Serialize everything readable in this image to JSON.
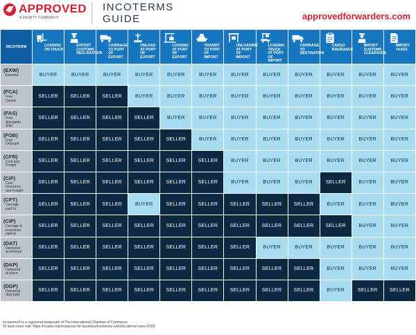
{
  "brand": {
    "name": "APPROVED",
    "tagline": "A DEWITT COMPANY®",
    "red": "#d3202f"
  },
  "title": {
    "line1": "INCOTERMS",
    "line2": "GUIDE"
  },
  "website": "approvedforwarders.com",
  "colors": {
    "header_blue": "#1676bf",
    "seller_navy": "#0c2944",
    "buyer_light": "#a8dcf1",
    "row_label_gray": "#bcc3ca"
  },
  "corner_label": "INCOTERM",
  "columns": [
    {
      "label": "LOADING\nON TRUCK",
      "icon": "forklift-icon"
    },
    {
      "label": "EXPORT\nCUSTOMS\nDECLARATION",
      "icon": "customs-officer-icon"
    },
    {
      "label": "CARRIAGE\nTO PORT\nOF EXPORT",
      "icon": "truck-icon"
    },
    {
      "label": "UNLOAD\nAT PORT\nOF EXPORT",
      "icon": "crane-unload-icon"
    },
    {
      "label": "LOADING\nAT PORT\nOF EXPORT",
      "icon": "crane-load-icon"
    },
    {
      "label": "TRANSIT\nTO PORT\nOF IMPORT",
      "icon": "ship-icon"
    },
    {
      "label": "UNLOADING\nAT PORT\nOF IMPORT",
      "icon": "gantry-crane-icon"
    },
    {
      "label": "LOADING TRUCK\nAT PORT\nOF IMPORT",
      "icon": "crane-truck-icon"
    },
    {
      "label": "CARRIAGE\nTO\nDESTINATION",
      "icon": "truck-icon"
    },
    {
      "label": "CARGO\nINSURANCE",
      "icon": "clipboard-icon"
    },
    {
      "label": "IMPORT\nCUSTOMS\nCLEARANCE",
      "icon": "customs-officer-icon"
    },
    {
      "label": "IMPORT\nTAXES",
      "icon": "document-icon"
    }
  ],
  "rows": [
    {
      "code": "(EXW)",
      "name": "Exworks",
      "cells": [
        "BUYER",
        "BUYER",
        "BUYER",
        "BUYER",
        "BUYER",
        "BUYER",
        "BUYER",
        "BUYER",
        "BUYER",
        "BUYER",
        "BUYER",
        "BUYER"
      ]
    },
    {
      "code": "(FCA)",
      "name": "Free\nCarrier",
      "cells": [
        "SELLER",
        "SELLER",
        "SELLER",
        "BUYER",
        "BUYER",
        "BUYER",
        "BUYER",
        "BUYER",
        "BUYER",
        "BUYER",
        "BUYER",
        "BUYER"
      ]
    },
    {
      "code": "(FAS)",
      "name": "Free\nAlongside\nShip",
      "cells": [
        "SELLER",
        "SELLER",
        "SELLER",
        "SELLER",
        "BUYER",
        "BUYER",
        "BUYER",
        "BUYER",
        "BUYER",
        "BUYER",
        "BUYER",
        "BUYER"
      ]
    },
    {
      "code": "(FOB)",
      "name": "Free\nOnboard",
      "cells": [
        "SELLER",
        "SELLER",
        "SELLER",
        "SELLER",
        "SELLER",
        "BUYER",
        "BUYER",
        "BUYER",
        "BUYER",
        "BUYER",
        "BUYER",
        "BUYER"
      ]
    },
    {
      "code": "(CFR)",
      "name": "Cost and\nFreight",
      "cells": [
        "SELLER",
        "SELLER",
        "SELLER",
        "SELLER",
        "SELLER",
        "SELLER",
        "BUYER",
        "BUYER",
        "BUYER",
        "BUYER",
        "BUYER",
        "BUYER"
      ]
    },
    {
      "code": "(CIF)",
      "name": "Cost,\nInsurance,\nand Freight",
      "cells": [
        "SELLER",
        "SELLER",
        "SELLER",
        "SELLER",
        "SELLER",
        "SELLER",
        "BUYER",
        "BUYER",
        "BUYER",
        "SELLER",
        "BUYER",
        "BUYER"
      ]
    },
    {
      "code": "(CPT)",
      "name": "Carriage\npaid to",
      "cells": [
        "SELLER",
        "SELLER",
        "SELLER",
        "BUYER",
        "SELLER",
        "SELLER",
        "SELLER",
        "SELLER",
        "SELLER",
        "BUYER",
        "BUYER",
        "BUYER"
      ]
    },
    {
      "code": "(CIP)",
      "name": "Carriage &\nInsurance\npaid to",
      "cells": [
        "SELLER",
        "SELLER",
        "SELLER",
        "SELLER",
        "SELLER",
        "SELLER",
        "SELLER",
        "SELLER",
        "SELLER",
        "SELLER",
        "BUYER",
        "BUYER"
      ]
    },
    {
      "code": "(DAT)",
      "name": "Delivered\nat terminal",
      "cells": [
        "SELLER",
        "SELLER",
        "SELLER",
        "SELLER",
        "SELLER",
        "SELLER",
        "SELLER",
        "BUYER",
        "BUYER",
        "BUYER",
        "BUYER",
        "BUYER"
      ]
    },
    {
      "code": "(DAP)",
      "name": "Delivered\nat place",
      "cells": [
        "SELLER",
        "SELLER",
        "SELLER",
        "SELLER",
        "SELLER",
        "SELLER",
        "SELLER",
        "SELLER",
        "SELLER",
        "BUYER",
        "BUYER",
        "BUYER"
      ]
    },
    {
      "code": "(DDP)",
      "name": "Delivered\nduty paid",
      "cells": [
        "SELLER",
        "SELLER",
        "SELLER",
        "SELLER",
        "SELLER",
        "SELLER",
        "SELLER",
        "SELLER",
        "SELLER",
        "BUYER",
        "SELLER",
        "SELLER"
      ]
    }
  ],
  "footer": {
    "line1": "Incoterms® is a registered trademark of The International Chamber of Commerce",
    "line2": "To learn more visit: https://iccwbo.org/resources-for-business/incoterms-rules/incoterms-rules-2010/"
  }
}
